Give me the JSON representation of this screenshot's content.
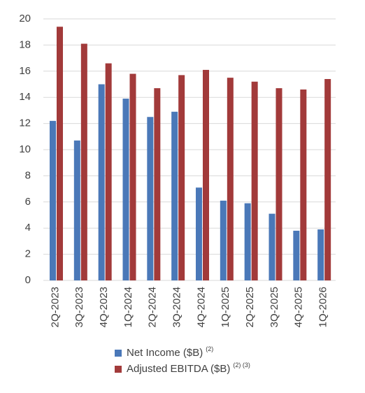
{
  "chart_data": {
    "type": "bar",
    "categories": [
      "2Q-2023",
      "3Q-2023",
      "4Q-2023",
      "1Q-2024",
      "2Q-2024",
      "3Q-2024",
      "4Q-2024",
      "1Q-2025",
      "2Q-2025",
      "3Q-2025",
      "4Q-2025",
      "1Q-2026"
    ],
    "series": [
      {
        "name": "Net Income ($B)",
        "footnote": "(2)",
        "color": "#4a78b8",
        "values": [
          12.2,
          10.7,
          15.0,
          13.9,
          12.5,
          12.9,
          7.1,
          6.1,
          5.9,
          5.1,
          3.8,
          3.9
        ]
      },
      {
        "name": "Adjusted EBITDA ($B)",
        "footnote": "(2) (3)",
        "color": "#a23a3a",
        "values": [
          19.4,
          18.1,
          16.6,
          15.8,
          14.7,
          15.7,
          16.1,
          15.5,
          15.2,
          14.7,
          14.6,
          15.4
        ]
      }
    ],
    "ylim": [
      0,
      20
    ],
    "yticks": [
      0,
      2,
      4,
      6,
      8,
      10,
      12,
      14,
      16,
      18,
      20
    ],
    "grid": true,
    "legend": "bottom"
  }
}
